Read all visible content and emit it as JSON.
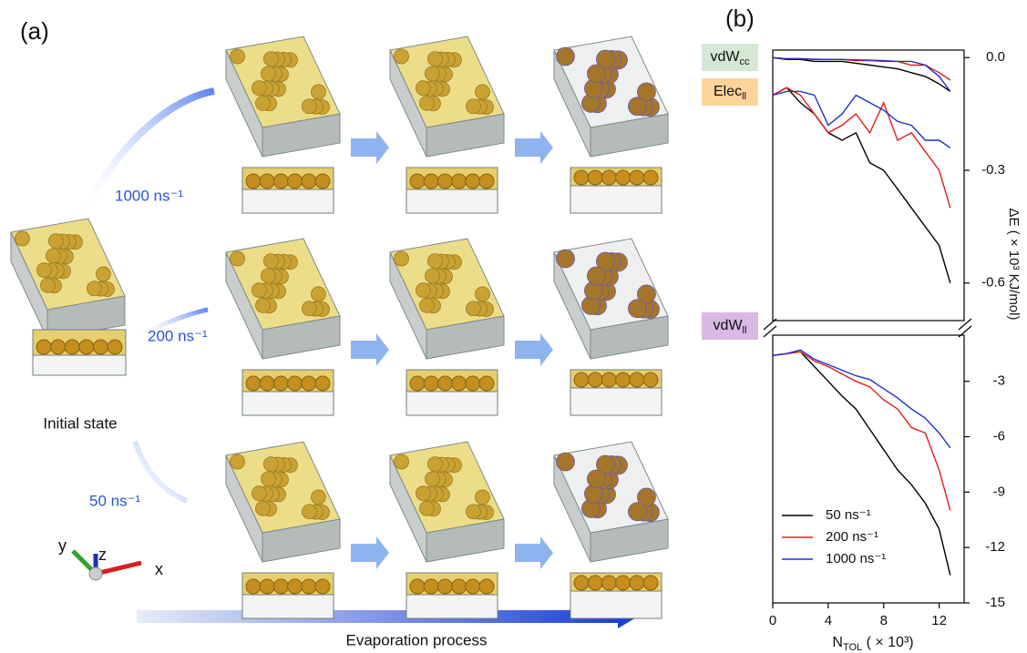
{
  "panel_a": {
    "label": "(a)",
    "rates": [
      "1000 ns⁻¹",
      "200 ns⁻¹",
      "50 ns⁻¹"
    ],
    "initial": "Initial state",
    "process": "Evaporation process",
    "axes": [
      "x",
      "y",
      "z"
    ]
  },
  "panel_b_label": "(b)",
  "chart_data": [
    {
      "type": "line",
      "ylabel": "ΔE ( × 10³ KJ/mol)",
      "annotations": [
        {
          "text": "vdW",
          "sub": "cc",
          "color": "#d5e8d4"
        },
        {
          "text": "Elec",
          "sub": "ll",
          "color": "#fdd49a"
        }
      ],
      "x": [
        0,
        1,
        2,
        3,
        4,
        5,
        6,
        7,
        8,
        9,
        10,
        11,
        12,
        12.8
      ],
      "xlim": [
        0,
        13.8
      ],
      "ylim": [
        -0.7,
        0.02
      ],
      "yticks": [
        {
          "value": 0,
          "label": "0.0"
        },
        -0.3,
        -0.6
      ],
      "series": [
        {
          "color": "#000000",
          "values": [
            0,
            -0.005,
            -0.005,
            -0.01,
            -0.01,
            -0.01,
            -0.015,
            -0.02,
            -0.025,
            -0.03,
            -0.04,
            -0.05,
            -0.07,
            -0.09
          ]
        },
        {
          "color": "#e41a1c",
          "values": [
            0,
            -0.003,
            -0.003,
            -0.005,
            -0.005,
            -0.005,
            -0.008,
            -0.008,
            -0.01,
            -0.01,
            -0.02,
            -0.02,
            -0.04,
            -0.06
          ]
        },
        {
          "color": "#1f2fd0",
          "values": [
            0,
            -0.003,
            -0.003,
            -0.004,
            -0.005,
            -0.005,
            -0.006,
            -0.007,
            -0.008,
            -0.01,
            -0.01,
            -0.02,
            -0.05,
            -0.09
          ]
        },
        {
          "color": "#000000",
          "values": [
            -0.1,
            -0.08,
            -0.12,
            -0.15,
            -0.2,
            -0.22,
            -0.2,
            -0.28,
            -0.3,
            -0.35,
            -0.4,
            -0.45,
            -0.5,
            -0.6
          ]
        },
        {
          "color": "#e41a1c",
          "values": [
            -0.1,
            -0.08,
            -0.1,
            -0.15,
            -0.2,
            -0.18,
            -0.15,
            -0.2,
            -0.12,
            -0.22,
            -0.2,
            -0.25,
            -0.3,
            -0.4
          ]
        },
        {
          "color": "#1f2fd0",
          "values": [
            -0.1,
            -0.09,
            -0.09,
            -0.1,
            -0.18,
            -0.15,
            -0.1,
            -0.12,
            -0.14,
            -0.17,
            -0.18,
            -0.22,
            -0.22,
            -0.24
          ]
        }
      ]
    },
    {
      "type": "line",
      "annotations": [
        {
          "text": "vdW",
          "sub": "ll",
          "color": "#d9b8e3"
        }
      ],
      "xlabel": {
        "main": "N",
        "sub": "TOL",
        "tail": " ( × 10³)"
      },
      "x": [
        0,
        1,
        2,
        3,
        4,
        5,
        6,
        7,
        8,
        9,
        10,
        11,
        12,
        12.8
      ],
      "xlim": [
        0,
        13.8
      ],
      "xticks": [
        0,
        4,
        8,
        12
      ],
      "ylim": [
        -15,
        -0.5
      ],
      "yticks": [
        -3,
        -6,
        -9,
        -12,
        -15
      ],
      "legend": "lower left",
      "series": [
        {
          "name": "50 ns⁻¹",
          "color": "#000000",
          "values": [
            -1.6,
            -1.5,
            -1.4,
            -2.2,
            -3,
            -3.8,
            -4.5,
            -5.6,
            -6.7,
            -7.8,
            -8.6,
            -9.6,
            -11,
            -13.5
          ]
        },
        {
          "name": "200 ns⁻¹",
          "color": "#e41a1c",
          "values": [
            -1.6,
            -1.5,
            -1.4,
            -1.9,
            -2.2,
            -2.6,
            -3,
            -3.3,
            -4,
            -4.5,
            -5.5,
            -5.8,
            -7.8,
            -10
          ]
        },
        {
          "name": "1000 ns⁻¹",
          "color": "#1f2fd0",
          "values": [
            -1.6,
            -1.5,
            -1.3,
            -1.8,
            -2.1,
            -2.4,
            -2.7,
            -2.9,
            -3.4,
            -3.9,
            -4.5,
            -5,
            -5.8,
            -6.6
          ]
        }
      ]
    }
  ]
}
